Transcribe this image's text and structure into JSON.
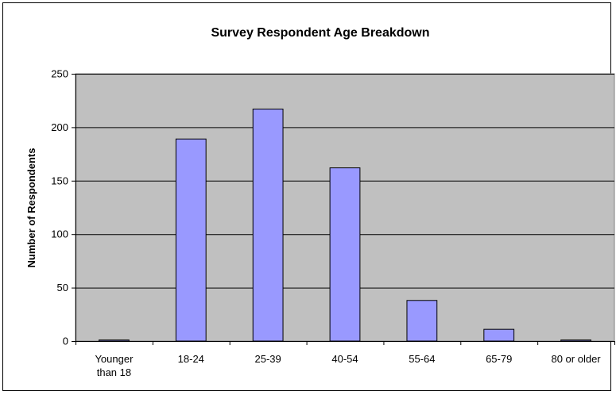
{
  "chart_data": {
    "type": "bar",
    "title": "Survey Respondent Age Breakdown",
    "xlabel": "",
    "ylabel": "Number of Respondents",
    "categories": [
      "Younger than 18",
      "18-24",
      "25-39",
      "40-54",
      "55-64",
      "65-79",
      "80 or older"
    ],
    "category_lines": [
      [
        "Younger",
        "than 18"
      ],
      [
        "18-24"
      ],
      [
        "25-39"
      ],
      [
        "40-54"
      ],
      [
        "55-64"
      ],
      [
        "65-79"
      ],
      [
        "80 or older"
      ]
    ],
    "values": [
      1,
      189,
      217,
      162,
      38,
      11,
      1
    ],
    "ylim": [
      0,
      250
    ],
    "yticks": [
      0,
      50,
      100,
      150,
      200,
      250
    ],
    "grid": true,
    "legend": "none",
    "colors": {
      "bar_fill": "#9999ff",
      "plot_background": "#c0c0c0",
      "gridline": "#000000"
    }
  }
}
